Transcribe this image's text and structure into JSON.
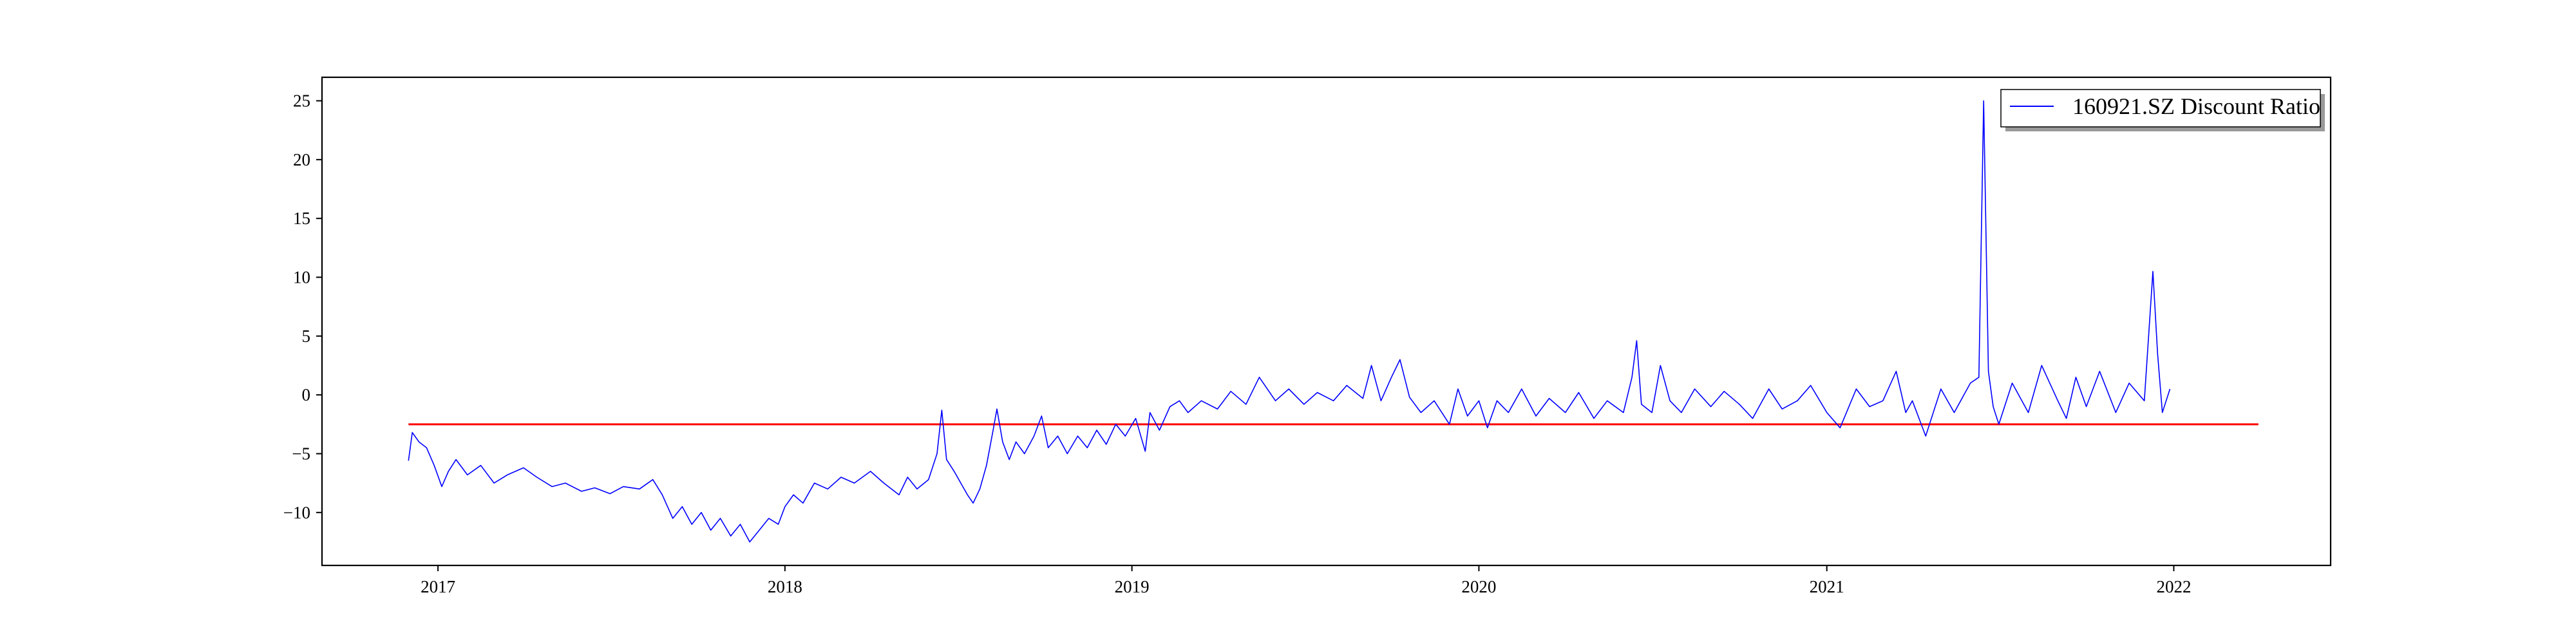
{
  "chart_data": {
    "type": "line",
    "title": "",
    "xlabel": "",
    "ylabel": "",
    "x_range": [
      "2016-09-01",
      "2022-06-15"
    ],
    "ylim": [
      -14.5,
      27
    ],
    "x_tick_labels": [
      "2017",
      "2018",
      "2019",
      "2020",
      "2021",
      "2022"
    ],
    "y_ticks": [
      25,
      20,
      15,
      10,
      5,
      0,
      -5,
      -10
    ],
    "grid": false,
    "legend_position": "top-right",
    "series": [
      {
        "name": "160921.SZ Discount Ratio",
        "color": "#0000ff",
        "points": [
          [
            "2016-12-01",
            -5.6
          ],
          [
            "2016-12-05",
            -3.2
          ],
          [
            "2016-12-12",
            -4.0
          ],
          [
            "2016-12-20",
            -4.5
          ],
          [
            "2016-12-28",
            -6.0
          ],
          [
            "2017-01-05",
            -7.8
          ],
          [
            "2017-01-12",
            -6.5
          ],
          [
            "2017-01-20",
            -5.5
          ],
          [
            "2017-02-01",
            -6.8
          ],
          [
            "2017-02-15",
            -6.0
          ],
          [
            "2017-03-01",
            -7.5
          ],
          [
            "2017-03-15",
            -6.8
          ],
          [
            "2017-04-01",
            -6.2
          ],
          [
            "2017-04-15",
            -7.0
          ],
          [
            "2017-05-01",
            -7.8
          ],
          [
            "2017-05-15",
            -7.5
          ],
          [
            "2017-06-01",
            -8.2
          ],
          [
            "2017-06-15",
            -7.9
          ],
          [
            "2017-07-01",
            -8.4
          ],
          [
            "2017-07-15",
            -7.8
          ],
          [
            "2017-08-01",
            -8.0
          ],
          [
            "2017-08-15",
            -7.2
          ],
          [
            "2017-08-25",
            -8.5
          ],
          [
            "2017-09-05",
            -10.5
          ],
          [
            "2017-09-15",
            -9.5
          ],
          [
            "2017-09-25",
            -11.0
          ],
          [
            "2017-10-05",
            -10.0
          ],
          [
            "2017-10-15",
            -11.5
          ],
          [
            "2017-10-25",
            -10.5
          ],
          [
            "2017-11-05",
            -12.0
          ],
          [
            "2017-11-15",
            -11.0
          ],
          [
            "2017-11-25",
            -12.5
          ],
          [
            "2017-12-05",
            -11.5
          ],
          [
            "2017-12-15",
            -10.5
          ],
          [
            "2017-12-25",
            -11.0
          ],
          [
            "2018-01-01",
            -9.5
          ],
          [
            "2018-01-10",
            -8.5
          ],
          [
            "2018-01-20",
            -9.2
          ],
          [
            "2018-02-01",
            -7.5
          ],
          [
            "2018-02-15",
            -8.0
          ],
          [
            "2018-03-01",
            -7.0
          ],
          [
            "2018-03-15",
            -7.5
          ],
          [
            "2018-04-01",
            -6.5
          ],
          [
            "2018-04-15",
            -7.5
          ],
          [
            "2018-05-01",
            -8.5
          ],
          [
            "2018-05-10",
            -7.0
          ],
          [
            "2018-05-20",
            -8.0
          ],
          [
            "2018-06-01",
            -7.2
          ],
          [
            "2018-06-10",
            -5.0
          ],
          [
            "2018-06-15",
            -1.3
          ],
          [
            "2018-06-20",
            -5.5
          ],
          [
            "2018-06-28",
            -6.5
          ],
          [
            "2018-07-05",
            -7.5
          ],
          [
            "2018-07-12",
            -8.5
          ],
          [
            "2018-07-18",
            -9.2
          ],
          [
            "2018-07-25",
            -8.0
          ],
          [
            "2018-08-01",
            -6.0
          ],
          [
            "2018-08-08",
            -3.0
          ],
          [
            "2018-08-12",
            -1.2
          ],
          [
            "2018-08-18",
            -4.0
          ],
          [
            "2018-08-25",
            -5.5
          ],
          [
            "2018-09-01",
            -4.0
          ],
          [
            "2018-09-10",
            -5.0
          ],
          [
            "2018-09-20",
            -3.5
          ],
          [
            "2018-09-28",
            -1.8
          ],
          [
            "2018-10-05",
            -4.5
          ],
          [
            "2018-10-15",
            -3.5
          ],
          [
            "2018-10-25",
            -5.0
          ],
          [
            "2018-11-05",
            -3.5
          ],
          [
            "2018-11-15",
            -4.5
          ],
          [
            "2018-11-25",
            -3.0
          ],
          [
            "2018-12-05",
            -4.2
          ],
          [
            "2018-12-15",
            -2.5
          ],
          [
            "2018-12-25",
            -3.5
          ],
          [
            "2019-01-05",
            -2.0
          ],
          [
            "2019-01-15",
            -4.8
          ],
          [
            "2019-01-20",
            -1.5
          ],
          [
            "2019-01-30",
            -3.0
          ],
          [
            "2019-02-10",
            -1.0
          ],
          [
            "2019-02-20",
            -0.5
          ],
          [
            "2019-03-01",
            -1.5
          ],
          [
            "2019-03-15",
            -0.5
          ],
          [
            "2019-04-01",
            -1.2
          ],
          [
            "2019-04-15",
            0.3
          ],
          [
            "2019-05-01",
            -0.8
          ],
          [
            "2019-05-15",
            1.5
          ],
          [
            "2019-06-01",
            -0.5
          ],
          [
            "2019-06-15",
            0.5
          ],
          [
            "2019-07-01",
            -0.8
          ],
          [
            "2019-07-15",
            0.2
          ],
          [
            "2019-08-01",
            -0.5
          ],
          [
            "2019-08-15",
            0.8
          ],
          [
            "2019-09-01",
            -0.3
          ],
          [
            "2019-09-10",
            2.5
          ],
          [
            "2019-09-20",
            -0.5
          ],
          [
            "2019-10-01",
            1.5
          ],
          [
            "2019-10-10",
            3.0
          ],
          [
            "2019-10-20",
            -0.2
          ],
          [
            "2019-11-01",
            -1.5
          ],
          [
            "2019-11-15",
            -0.5
          ],
          [
            "2019-12-01",
            -2.5
          ],
          [
            "2019-12-10",
            0.5
          ],
          [
            "2019-12-20",
            -1.8
          ],
          [
            "2020-01-01",
            -0.5
          ],
          [
            "2020-01-10",
            -2.8
          ],
          [
            "2020-01-20",
            -0.5
          ],
          [
            "2020-02-01",
            -1.5
          ],
          [
            "2020-02-15",
            0.5
          ],
          [
            "2020-03-01",
            -1.8
          ],
          [
            "2020-03-15",
            -0.3
          ],
          [
            "2020-04-01",
            -1.5
          ],
          [
            "2020-04-15",
            0.2
          ],
          [
            "2020-05-01",
            -2.0
          ],
          [
            "2020-05-15",
            -0.5
          ],
          [
            "2020-06-01",
            -1.5
          ],
          [
            "2020-06-10",
            1.5
          ],
          [
            "2020-06-15",
            4.6
          ],
          [
            "2020-06-20",
            -0.8
          ],
          [
            "2020-07-01",
            -1.5
          ],
          [
            "2020-07-10",
            2.5
          ],
          [
            "2020-07-20",
            -0.5
          ],
          [
            "2020-08-01",
            -1.5
          ],
          [
            "2020-08-15",
            0.5
          ],
          [
            "2020-09-01",
            -1.0
          ],
          [
            "2020-09-15",
            0.3
          ],
          [
            "2020-10-01",
            -0.8
          ],
          [
            "2020-10-15",
            -2.0
          ],
          [
            "2020-11-01",
            0.5
          ],
          [
            "2020-11-15",
            -1.2
          ],
          [
            "2020-12-01",
            -0.5
          ],
          [
            "2020-12-15",
            0.8
          ],
          [
            "2021-01-01",
            -1.5
          ],
          [
            "2021-01-15",
            -2.8
          ],
          [
            "2021-02-01",
            0.5
          ],
          [
            "2021-02-15",
            -1.0
          ],
          [
            "2021-03-01",
            -0.5
          ],
          [
            "2021-03-15",
            2.0
          ],
          [
            "2021-03-25",
            -1.5
          ],
          [
            "2021-04-01",
            -0.5
          ],
          [
            "2021-04-15",
            -3.5
          ],
          [
            "2021-05-01",
            0.5
          ],
          [
            "2021-05-15",
            -1.5
          ],
          [
            "2021-06-01",
            1.0
          ],
          [
            "2021-06-10",
            1.5
          ],
          [
            "2021-06-15",
            25.0
          ],
          [
            "2021-06-20",
            2.0
          ],
          [
            "2021-06-25",
            -1.0
          ],
          [
            "2021-07-01",
            -2.5
          ],
          [
            "2021-07-15",
            1.0
          ],
          [
            "2021-08-01",
            -1.5
          ],
          [
            "2021-08-15",
            2.5
          ],
          [
            "2021-09-01",
            -0.5
          ],
          [
            "2021-09-10",
            -2.0
          ],
          [
            "2021-09-20",
            1.5
          ],
          [
            "2021-10-01",
            -1.0
          ],
          [
            "2021-10-15",
            2.0
          ],
          [
            "2021-11-01",
            -1.5
          ],
          [
            "2021-11-15",
            1.0
          ],
          [
            "2021-12-01",
            -0.5
          ],
          [
            "2021-12-10",
            10.5
          ],
          [
            "2021-12-15",
            3.5
          ],
          [
            "2021-12-20",
            -1.5
          ],
          [
            "2021-12-28",
            0.5
          ]
        ]
      }
    ],
    "reference_line": {
      "y": -2.5,
      "x_start": "2016-12-01",
      "x_end": "2022-03-31",
      "color": "#ff0000"
    }
  }
}
